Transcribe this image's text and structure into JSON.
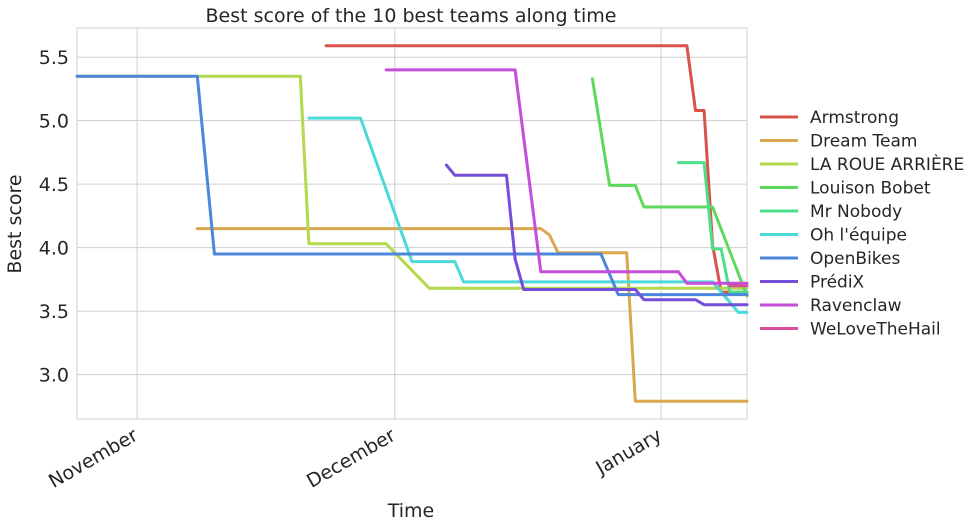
{
  "chart_data": {
    "type": "line",
    "title": "Best score of the 10 best teams along time",
    "xlabel": "Time",
    "ylabel": "Best score",
    "x_tick_labels": [
      "November",
      "December",
      "January"
    ],
    "x_tick_dates": [
      "2017-11-01",
      "2017-12-01",
      "2018-01-01"
    ],
    "xlim": [
      "2017-10-25",
      "2018-01-11"
    ],
    "ylim": [
      2.65,
      5.73
    ],
    "y_ticks": [
      3.0,
      3.5,
      4.0,
      4.5,
      5.0,
      5.5
    ],
    "y_tick_labels": [
      "3.0",
      "3.5",
      "4.0",
      "4.5",
      "5.0",
      "5.5"
    ],
    "grid": true,
    "legend_position": "right",
    "series": [
      {
        "name": "Armstrong",
        "color": "#d9534a",
        "points": [
          [
            "2017-11-23",
            5.59
          ],
          [
            "2018-01-04",
            5.59
          ],
          [
            "2018-01-05",
            5.08
          ],
          [
            "2018-01-06",
            5.08
          ],
          [
            "2018-01-07",
            4.02
          ],
          [
            "2018-01-08",
            3.65
          ],
          [
            "2018-01-11",
            3.65
          ]
        ]
      },
      {
        "name": "Dream Team",
        "color": "#d9a84e",
        "points": [
          [
            "2017-11-08",
            4.15
          ],
          [
            "2017-12-18",
            4.15
          ],
          [
            "2017-12-19",
            4.1
          ],
          [
            "2017-12-20",
            3.96
          ],
          [
            "2017-12-28",
            3.96
          ],
          [
            "2017-12-29",
            2.79
          ],
          [
            "2018-01-11",
            2.79
          ]
        ]
      },
      {
        "name": "LA ROUE ARRIÈRE",
        "color": "#b5d94e",
        "points": [
          [
            "2017-10-25",
            5.35
          ],
          [
            "2017-11-20",
            5.35
          ],
          [
            "2017-11-21",
            4.03
          ],
          [
            "2017-11-30",
            4.03
          ],
          [
            "2017-12-05",
            3.68
          ],
          [
            "2018-01-11",
            3.68
          ]
        ]
      },
      {
        "name": "Louison Bobet",
        "color": "#5ed95e",
        "points": [
          [
            "2017-12-24",
            5.33
          ],
          [
            "2017-12-26",
            4.49
          ],
          [
            "2017-12-29",
            4.49
          ],
          [
            "2017-12-30",
            4.32
          ],
          [
            "2018-01-07",
            4.32
          ],
          [
            "2018-01-11",
            3.62
          ]
        ]
      },
      {
        "name": "Mr Nobody",
        "color": "#4edd8b",
        "points": [
          [
            "2018-01-03",
            4.67
          ],
          [
            "2018-01-06",
            4.67
          ],
          [
            "2018-01-07",
            3.99
          ],
          [
            "2018-01-08",
            3.99
          ],
          [
            "2018-01-09",
            3.65
          ],
          [
            "2018-01-11",
            3.65
          ]
        ]
      },
      {
        "name": "Oh l'équipe",
        "color": "#4ed9d9",
        "points": [
          [
            "2017-11-21",
            5.02
          ],
          [
            "2017-11-27",
            5.02
          ],
          [
            "2017-12-03",
            3.89
          ],
          [
            "2017-12-08",
            3.89
          ],
          [
            "2017-12-09",
            3.73
          ],
          [
            "2018-01-07",
            3.73
          ],
          [
            "2018-01-10",
            3.49
          ],
          [
            "2018-01-11",
            3.49
          ]
        ]
      },
      {
        "name": "OpenBikes",
        "color": "#4e86d9",
        "points": [
          [
            "2017-10-25",
            5.35
          ],
          [
            "2017-11-08",
            5.35
          ],
          [
            "2017-11-10",
            3.95
          ],
          [
            "2017-12-25",
            3.95
          ],
          [
            "2017-12-27",
            3.63
          ],
          [
            "2018-01-11",
            3.63
          ]
        ]
      },
      {
        "name": "PrédiX",
        "color": "#744ed9",
        "points": [
          [
            "2017-12-07",
            4.65
          ],
          [
            "2017-12-08",
            4.57
          ],
          [
            "2017-12-14",
            4.57
          ],
          [
            "2017-12-15",
            3.91
          ],
          [
            "2017-12-16",
            3.67
          ],
          [
            "2017-12-29",
            3.67
          ],
          [
            "2017-12-30",
            3.59
          ],
          [
            "2018-01-05",
            3.59
          ],
          [
            "2018-01-06",
            3.55
          ],
          [
            "2018-01-11",
            3.55
          ]
        ]
      },
      {
        "name": "Ravenclaw",
        "color": "#c44ed9",
        "points": [
          [
            "2017-11-30",
            5.4
          ],
          [
            "2017-12-15",
            5.4
          ],
          [
            "2017-12-18",
            3.81
          ],
          [
            "2018-01-03",
            3.81
          ],
          [
            "2018-01-04",
            3.72
          ],
          [
            "2018-01-11",
            3.72
          ]
        ]
      },
      {
        "name": "WeLoveTheHail",
        "color": "#d94e9a",
        "points": [
          [
            "2018-01-09",
            3.7
          ],
          [
            "2018-01-11",
            3.7
          ]
        ]
      }
    ]
  }
}
